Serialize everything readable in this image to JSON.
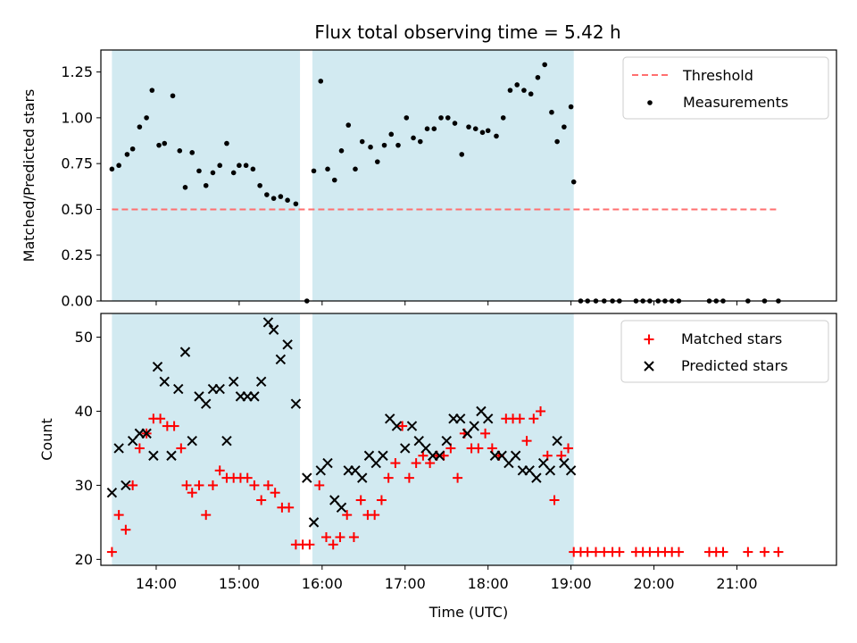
{
  "chart_data": [
    {
      "type": "scatter",
      "title": "Flux total observing time = 5.42 h",
      "xlabel": "",
      "ylabel": "Matched/Predicted stars",
      "xlim_hours": [
        13.3333,
        22.2
      ],
      "ylim": [
        0,
        1.37
      ],
      "yticks": [
        "0.00",
        "0.25",
        "0.50",
        "0.75",
        "1.00",
        "1.25"
      ],
      "xticks": [
        "14:00",
        "15:00",
        "16:00",
        "17:00",
        "18:00",
        "19:00",
        "20:00",
        "21:00"
      ],
      "observing_windows_hours": [
        [
          13.4667,
          15.7333
        ],
        [
          15.8833,
          19.0333
        ]
      ],
      "colors": {
        "window": "#add8e6",
        "threshold": "#ff6f6f",
        "measurements": "#000000"
      },
      "legend": {
        "position": "upper-right",
        "entries": [
          "Threshold",
          "Measurements"
        ]
      },
      "threshold": {
        "name": "Threshold",
        "value": 0.5,
        "x_range_hours": [
          13.4667,
          21.5
        ]
      },
      "series": [
        {
          "name": "Measurements",
          "x_hours": [
            13.4667,
            13.55,
            13.65,
            13.7167,
            13.8,
            13.8833,
            13.95,
            14.0333,
            14.1,
            14.2,
            14.2833,
            14.35,
            14.4333,
            14.5167,
            14.6,
            14.6833,
            14.7667,
            14.85,
            14.9333,
            15.0,
            15.0833,
            15.1667,
            15.25,
            15.3333,
            15.4167,
            15.5,
            15.5833,
            15.6833,
            15.8167,
            15.9,
            15.9833,
            16.0667,
            16.15,
            16.2333,
            16.3167,
            16.4,
            16.4833,
            16.5833,
            16.6667,
            16.75,
            16.8333,
            16.9167,
            17.0167,
            17.1,
            17.1833,
            17.2667,
            17.35,
            17.4333,
            17.5167,
            17.6,
            17.6833,
            17.7667,
            17.85,
            17.9333,
            18.0,
            18.1,
            18.1833,
            18.2667,
            18.35,
            18.4333,
            18.5167,
            18.6,
            18.6833,
            18.7667,
            18.8333,
            18.9167,
            19.0
          ],
          "y": [
            0.72,
            0.74,
            0.8,
            0.83,
            0.95,
            1.0,
            1.15,
            0.85,
            0.86,
            1.12,
            0.82,
            0.62,
            0.81,
            0.71,
            0.63,
            0.7,
            0.74,
            0.86,
            0.7,
            0.74,
            0.74,
            0.72,
            0.63,
            0.58,
            0.56,
            0.57,
            0.55,
            0.53,
            0.0,
            0.71,
            1.2,
            0.72,
            0.66,
            0.82,
            0.96,
            0.72,
            0.87,
            0.84,
            0.76,
            0.85,
            0.91,
            0.85,
            1.0,
            0.89,
            0.87,
            0.94,
            0.94,
            1.0,
            1.0,
            0.97,
            0.8,
            0.95,
            0.94,
            0.92,
            0.93,
            0.9,
            1.0,
            1.15,
            1.18,
            1.15,
            1.13,
            1.22,
            1.29,
            1.03,
            0.87,
            0.95,
            1.06
          ]
        },
        {
          "name": "Measurements (zero)",
          "x_hours": [
            19.0333,
            19.1167,
            19.2,
            19.3,
            19.4,
            19.5,
            19.5833,
            19.7833,
            19.8667,
            19.95,
            20.05,
            20.1333,
            20.2167,
            20.3,
            20.6667,
            20.75,
            20.8333,
            21.1333,
            21.3333,
            21.5
          ],
          "y": [
            0.65,
            0,
            0,
            0,
            0,
            0,
            0,
            0,
            0,
            0,
            0,
            0,
            0,
            0,
            0,
            0,
            0,
            0,
            0,
            0
          ]
        }
      ]
    },
    {
      "type": "scatter",
      "title": "",
      "xlabel": "Time (UTC)",
      "ylabel": "Count",
      "xlim_hours": [
        13.3333,
        22.2
      ],
      "ylim": [
        19.2,
        53.2
      ],
      "yticks": [
        "20",
        "30",
        "40",
        "50"
      ],
      "xticks": [
        "14:00",
        "15:00",
        "16:00",
        "17:00",
        "18:00",
        "19:00",
        "20:00",
        "21:00"
      ],
      "observing_windows_hours": [
        [
          13.4667,
          15.7333
        ],
        [
          15.8833,
          19.0333
        ]
      ],
      "colors": {
        "window": "#add8e6",
        "matched": "#ff0000",
        "predicted": "#000000"
      },
      "legend": {
        "position": "upper-right",
        "entries": [
          "Matched stars",
          "Predicted stars"
        ]
      },
      "series": [
        {
          "name": "Matched stars",
          "x_hours": [
            13.4667,
            13.55,
            13.6333,
            13.7167,
            13.8,
            13.8833,
            13.9667,
            14.05,
            14.1333,
            14.2167,
            14.3,
            14.3667,
            14.4333,
            14.5167,
            14.6,
            14.6833,
            14.7667,
            14.85,
            14.9333,
            15.0167,
            15.1,
            15.1833,
            15.2667,
            15.35,
            15.4333,
            15.5167,
            15.6,
            15.6833,
            15.7667,
            15.85,
            15.9667,
            16.05,
            16.1333,
            16.2167,
            16.3,
            16.3833,
            16.4667,
            16.55,
            16.6333,
            16.7167,
            16.8,
            16.8833,
            16.9667,
            17.05,
            17.1333,
            17.2167,
            17.3,
            17.3833,
            17.4667,
            17.55,
            17.6333,
            17.7167,
            17.8,
            17.8833,
            17.9667,
            18.05,
            18.1333,
            18.2167,
            18.3,
            18.3833,
            18.4667,
            18.55,
            18.6333,
            18.7167,
            18.8,
            18.8833,
            18.9667,
            19.0333,
            19.1167,
            19.2,
            19.3,
            19.4,
            19.5,
            19.5833,
            19.7833,
            19.8667,
            19.95,
            20.05,
            20.1333,
            20.2167,
            20.3,
            20.6667,
            20.75,
            20.8333,
            21.1333,
            21.3333,
            21.5
          ],
          "y": [
            21,
            26,
            24,
            30,
            35,
            37,
            39,
            39,
            38,
            38,
            35,
            30,
            29,
            30,
            26,
            30,
            32,
            31,
            31,
            31,
            31,
            30,
            28,
            30,
            29,
            27,
            27,
            22,
            22,
            22,
            30,
            23,
            22,
            23,
            26,
            23,
            28,
            26,
            26,
            28,
            31,
            33,
            38,
            31,
            33,
            34,
            33,
            34,
            34,
            35,
            31,
            37,
            35,
            35,
            37,
            35,
            34,
            39,
            39,
            39,
            36,
            39,
            40,
            34,
            28,
            34,
            35,
            21,
            21,
            21,
            21,
            21,
            21,
            21,
            21,
            21,
            21,
            21,
            21,
            21,
            21,
            21,
            21,
            21,
            21,
            21,
            21
          ]
        },
        {
          "name": "Predicted stars",
          "x_hours": [
            13.4667,
            13.55,
            13.6333,
            13.7167,
            13.8,
            13.8833,
            13.9667,
            14.0167,
            14.1,
            14.1833,
            14.2667,
            14.35,
            14.4333,
            14.5167,
            14.6,
            14.6833,
            14.7667,
            14.85,
            14.9333,
            15.0167,
            15.1,
            15.1833,
            15.2667,
            15.35,
            15.4167,
            15.5,
            15.5833,
            15.6833,
            15.8167,
            15.9,
            15.9833,
            16.0667,
            16.15,
            16.2333,
            16.3167,
            16.4,
            16.4833,
            16.5667,
            16.65,
            16.7333,
            16.8167,
            16.9,
            17.0,
            17.0833,
            17.1667,
            17.25,
            17.3333,
            17.4167,
            17.5,
            17.5833,
            17.6667,
            17.75,
            17.8333,
            17.9167,
            18.0,
            18.0833,
            18.1667,
            18.25,
            18.3333,
            18.4167,
            18.5,
            18.5833,
            18.6667,
            18.75,
            18.8333,
            18.9167,
            19.0
          ],
          "y": [
            29,
            35,
            30,
            36,
            37,
            37,
            34,
            46,
            44,
            34,
            43,
            48,
            36,
            42,
            41,
            43,
            43,
            36,
            44,
            42,
            42,
            42,
            44,
            52,
            51,
            47,
            49,
            41,
            31,
            25,
            32,
            33,
            28,
            27,
            32,
            32,
            31,
            34,
            33,
            34,
            39,
            38,
            35,
            38,
            36,
            35,
            34,
            34,
            36,
            39,
            39,
            37,
            38,
            40,
            39,
            34,
            34,
            33,
            34,
            32,
            32,
            31,
            33,
            32,
            36,
            33,
            32
          ]
        }
      ]
    }
  ]
}
